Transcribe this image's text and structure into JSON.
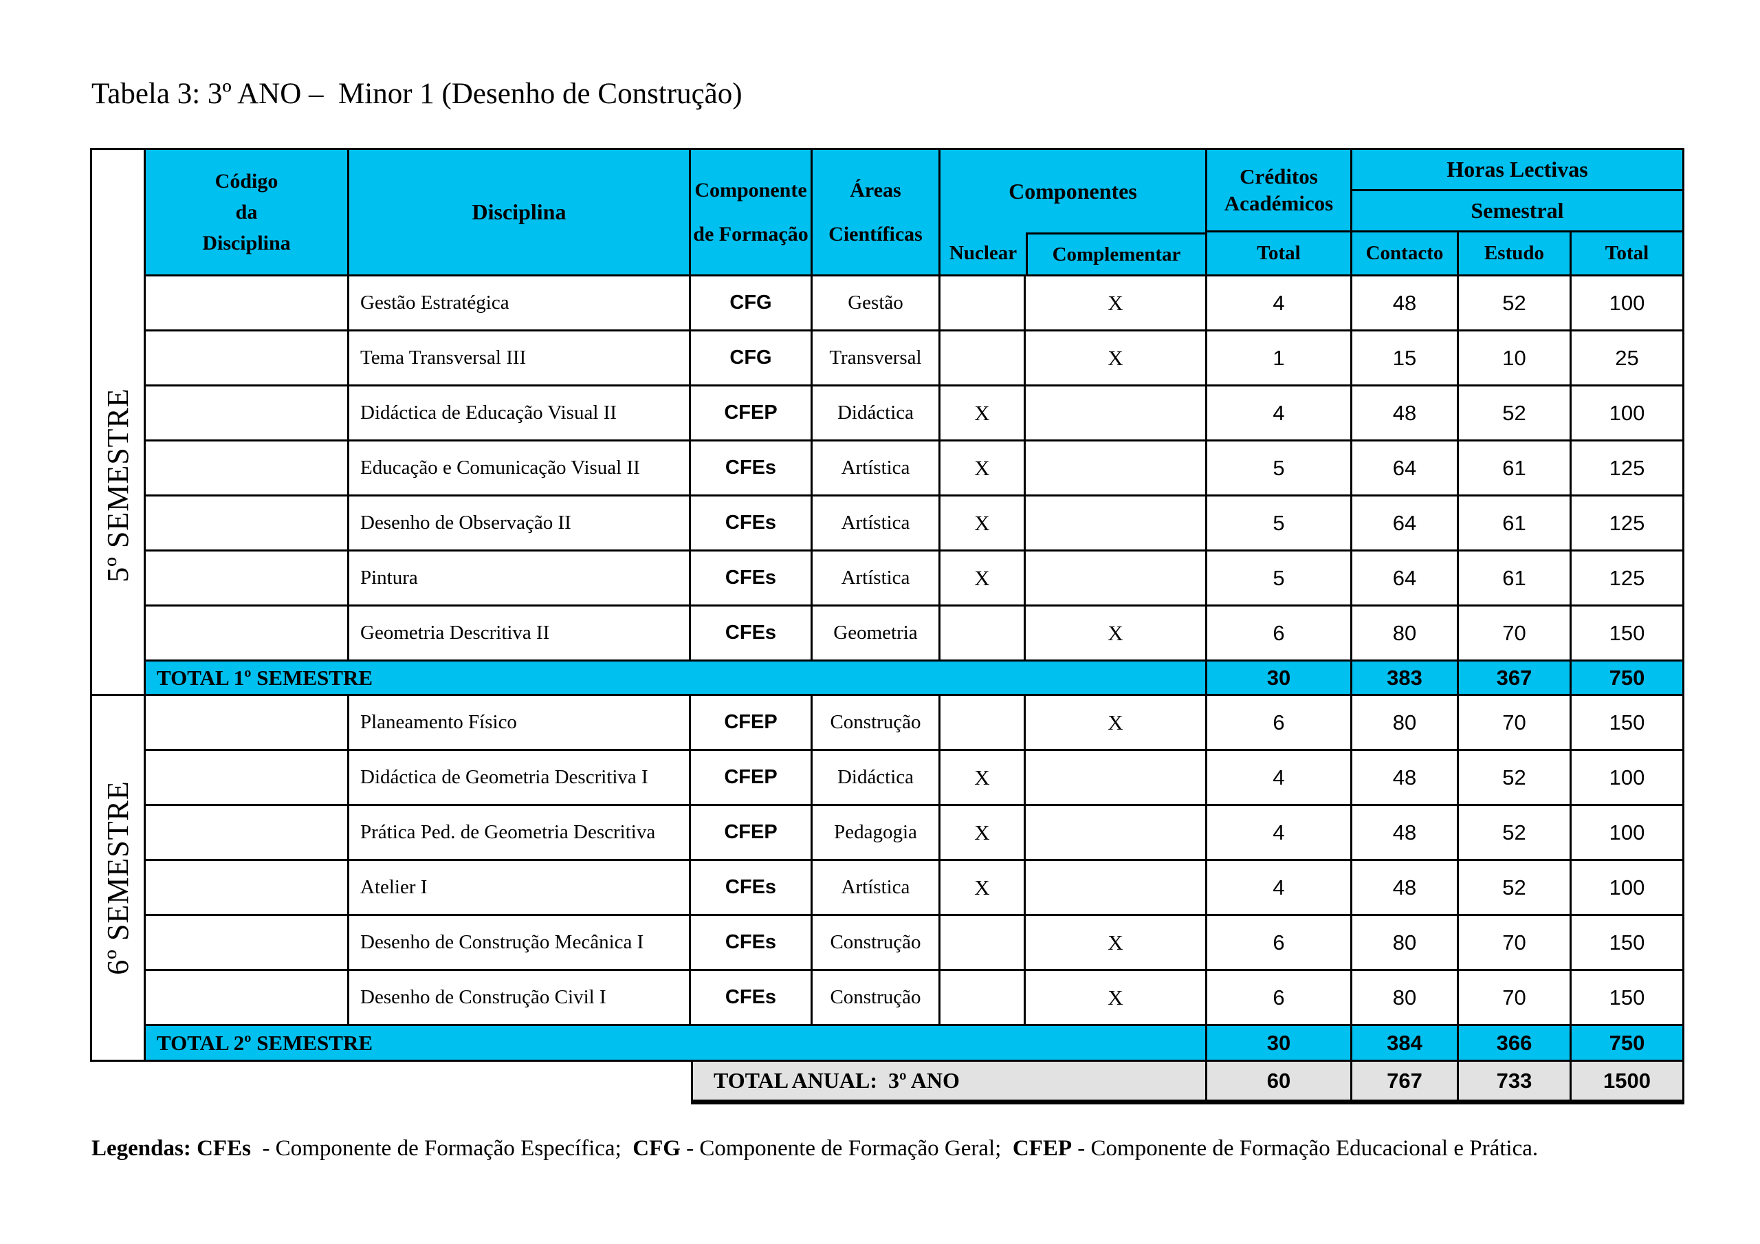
{
  "page": {
    "title": "Tabela 3: 3º ANO –  Minor 1 (Desenho de Construção)"
  },
  "colors": {
    "header_cyan": "#00C0F0",
    "annual_gray": "#E2E2E2",
    "border": "#000000",
    "background": "#FFFFFF"
  },
  "table": {
    "headers": {
      "codigo": {
        "line1": "Código",
        "line2": "da",
        "line3": "Disciplina"
      },
      "disciplina": "Disciplina",
      "componente_formacao": {
        "line1": "Componente",
        "line2": "de Formação"
      },
      "areas_cientificas": {
        "line1": "Áreas",
        "line2": "Científicas"
      },
      "componentes": "Componentes",
      "nuclear": "Nuclear",
      "complementar": "Complementar",
      "creditos_academicos": {
        "line1": "Créditos",
        "line2": "Académicos"
      },
      "creditos_total": "Total",
      "horas_lectivas": "Horas Lectivas",
      "semestral": "Semestral",
      "contacto": "Contacto",
      "estudo": "Estudo",
      "total": "Total"
    },
    "semesters": [
      {
        "label": "5º SEMESTRE",
        "rows": [
          {
            "codigo": "",
            "disciplina": "Gestão Estratégica",
            "componente": "CFG",
            "area": "Gestão",
            "nuclear": "",
            "complementar": "X",
            "creditos": "4",
            "contacto": "48",
            "estudo": "52",
            "total": "100"
          },
          {
            "codigo": "",
            "disciplina": "Tema Transversal III",
            "componente": "CFG",
            "area": "Transversal",
            "nuclear": "",
            "complementar": "X",
            "creditos": "1",
            "contacto": "15",
            "estudo": "10",
            "total": "25"
          },
          {
            "codigo": "",
            "disciplina": "Didáctica de Educação Visual II",
            "componente": "CFEP",
            "area": "Didáctica",
            "nuclear": "X",
            "complementar": "",
            "creditos": "4",
            "contacto": "48",
            "estudo": "52",
            "total": "100"
          },
          {
            "codigo": "",
            "disciplina": "Educação e Comunicação Visual II",
            "componente": "CFEs",
            "area": "Artística",
            "nuclear": "X",
            "complementar": "",
            "creditos": "5",
            "contacto": "64",
            "estudo": "61",
            "total": "125"
          },
          {
            "codigo": "",
            "disciplina": "Desenho de Observação II",
            "componente": "CFEs",
            "area": "Artística",
            "nuclear": "X",
            "complementar": "",
            "creditos": "5",
            "contacto": "64",
            "estudo": "61",
            "total": "125"
          },
          {
            "codigo": "",
            "disciplina": "Pintura",
            "componente": "CFEs",
            "area": "Artística",
            "nuclear": "X",
            "complementar": "",
            "creditos": "5",
            "contacto": "64",
            "estudo": "61",
            "total": "125"
          },
          {
            "codigo": "",
            "disciplina": "Geometria Descritiva II",
            "componente": "CFEs",
            "area": "Geometria",
            "nuclear": "",
            "complementar": "X",
            "creditos": "6",
            "contacto": "80",
            "estudo": "70",
            "total": "150"
          }
        ],
        "total_row": {
          "label": "TOTAL 1º SEMESTRE",
          "creditos": "30",
          "contacto": "383",
          "estudo": "367",
          "total": "750"
        }
      },
      {
        "label": "6º SEMESTRE",
        "rows": [
          {
            "codigo": "",
            "disciplina": "Planeamento Físico",
            "componente": "CFEP",
            "area": "Construção",
            "nuclear": "",
            "complementar": "X",
            "creditos": "6",
            "contacto": "80",
            "estudo": "70",
            "total": "150"
          },
          {
            "codigo": "",
            "disciplina": "Didáctica de Geometria Descritiva I",
            "componente": "CFEP",
            "area": "Didáctica",
            "nuclear": "X",
            "complementar": "",
            "creditos": "4",
            "contacto": "48",
            "estudo": "52",
            "total": "100"
          },
          {
            "codigo": "",
            "disciplina": "Prática Ped. de Geometria Descritiva",
            "componente": "CFEP",
            "area": "Pedagogia",
            "nuclear": "X",
            "complementar": "",
            "creditos": "4",
            "contacto": "48",
            "estudo": "52",
            "total": "100"
          },
          {
            "codigo": "",
            "disciplina": "Atelier I",
            "componente": "CFEs",
            "area": "Artística",
            "nuclear": "X",
            "complementar": "",
            "creditos": "4",
            "contacto": "48",
            "estudo": "52",
            "total": "100"
          },
          {
            "codigo": "",
            "disciplina": "Desenho de Construção Mecânica I",
            "componente": "CFEs",
            "area": "Construção",
            "nuclear": "",
            "complementar": "X",
            "creditos": "6",
            "contacto": "80",
            "estudo": "70",
            "total": "150"
          },
          {
            "codigo": "",
            "disciplina": "Desenho de Construção Civil I",
            "componente": "CFEs",
            "area": "Construção",
            "nuclear": "",
            "complementar": "X",
            "creditos": "6",
            "contacto": "80",
            "estudo": "70",
            "total": "150"
          }
        ],
        "total_row": {
          "label": "TOTAL 2º SEMESTRE",
          "creditos": "30",
          "contacto": "384",
          "estudo": "366",
          "total": "750"
        }
      }
    ],
    "annual_row": {
      "label": "TOTAL ANUAL:  3º ANO",
      "creditos": "60",
      "contacto": "767",
      "estudo": "733",
      "total": "1500"
    }
  },
  "legend": {
    "parts": [
      {
        "text": "Legendas: ",
        "bold": true
      },
      {
        "text": "CFEs",
        "bold": true
      },
      {
        "text": "  - Componente de Formação Específica;  ",
        "bold": false
      },
      {
        "text": "CFG",
        "bold": true
      },
      {
        "text": " - Componente de Formação Geral;  ",
        "bold": false
      },
      {
        "text": "CFEP",
        "bold": true
      },
      {
        "text": " - Componente de Formação Educacional e Prática.",
        "bold": false
      }
    ]
  }
}
